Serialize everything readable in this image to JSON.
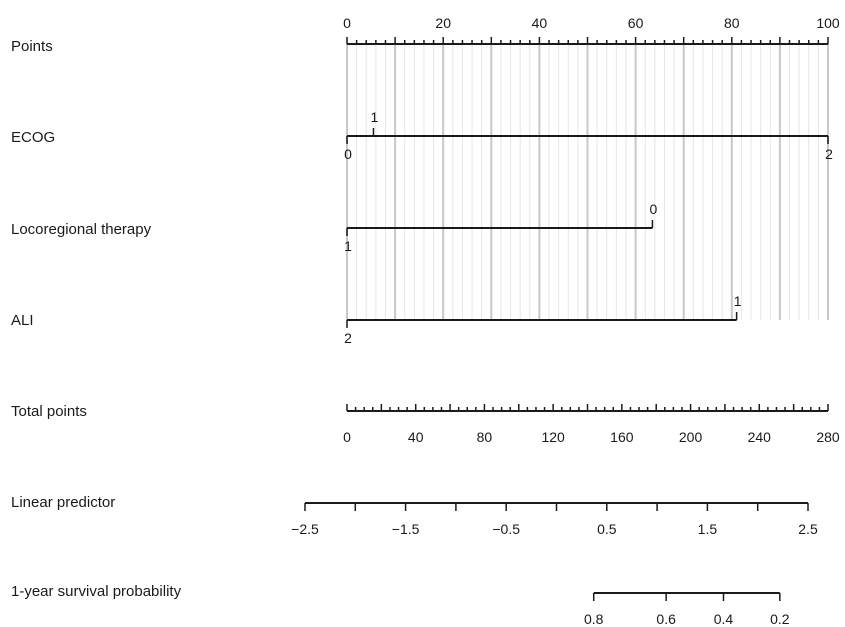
{
  "chart_data": {
    "type": "nomogram",
    "points_axis": {
      "label": "Points",
      "min": 0,
      "max": 100,
      "major_ticks": [
        0,
        20,
        40,
        60,
        80,
        100
      ],
      "mid_ticks": [
        10,
        30,
        50,
        70,
        90
      ],
      "minor_step": 2
    },
    "variables": [
      {
        "label": "ECOG",
        "levels": [
          {
            "label": "0",
            "points": 0,
            "side": "below"
          },
          {
            "label": "1",
            "points": 5.5,
            "side": "above"
          },
          {
            "label": "2",
            "points": 100,
            "side": "below"
          }
        ]
      },
      {
        "label": "Locoregional therapy",
        "levels": [
          {
            "label": "1",
            "points": 0,
            "side": "below"
          },
          {
            "label": "0",
            "points": 63.5,
            "side": "above"
          }
        ]
      },
      {
        "label": "ALI",
        "levels": [
          {
            "label": "2",
            "points": 0,
            "side": "below"
          },
          {
            "label": "1",
            "points": 81,
            "side": "above"
          }
        ]
      }
    ],
    "total_points": {
      "label": "Total points",
      "min": 0,
      "max": 280,
      "labeled_ticks": [
        0,
        40,
        80,
        120,
        160,
        200,
        240,
        280
      ],
      "minor_step": 5
    },
    "linear_predictor": {
      "label": "Linear predictor",
      "min": -2.5,
      "max": 2.5,
      "labels": [
        "−2.5",
        "−1.5",
        "−0.5",
        "0.5",
        "1.5",
        "2.5"
      ],
      "label_values": [
        -2.5,
        -1.5,
        -0.5,
        0.5,
        1.5,
        2.5
      ],
      "tick_values": [
        -2.5,
        -2.0,
        -1.5,
        -1.0,
        -0.5,
        0.0,
        0.5,
        1.0,
        1.5,
        2.0,
        2.5
      ]
    },
    "survival_probability": {
      "label": "1-year survival probability",
      "labels": [
        "0.8",
        "0.6",
        "0.4",
        "0.2"
      ],
      "values": [
        0.8,
        0.6,
        0.4,
        0.2
      ],
      "linear_predictor_at_value": [
        0.37,
        1.09,
        1.66,
        2.22
      ]
    }
  }
}
